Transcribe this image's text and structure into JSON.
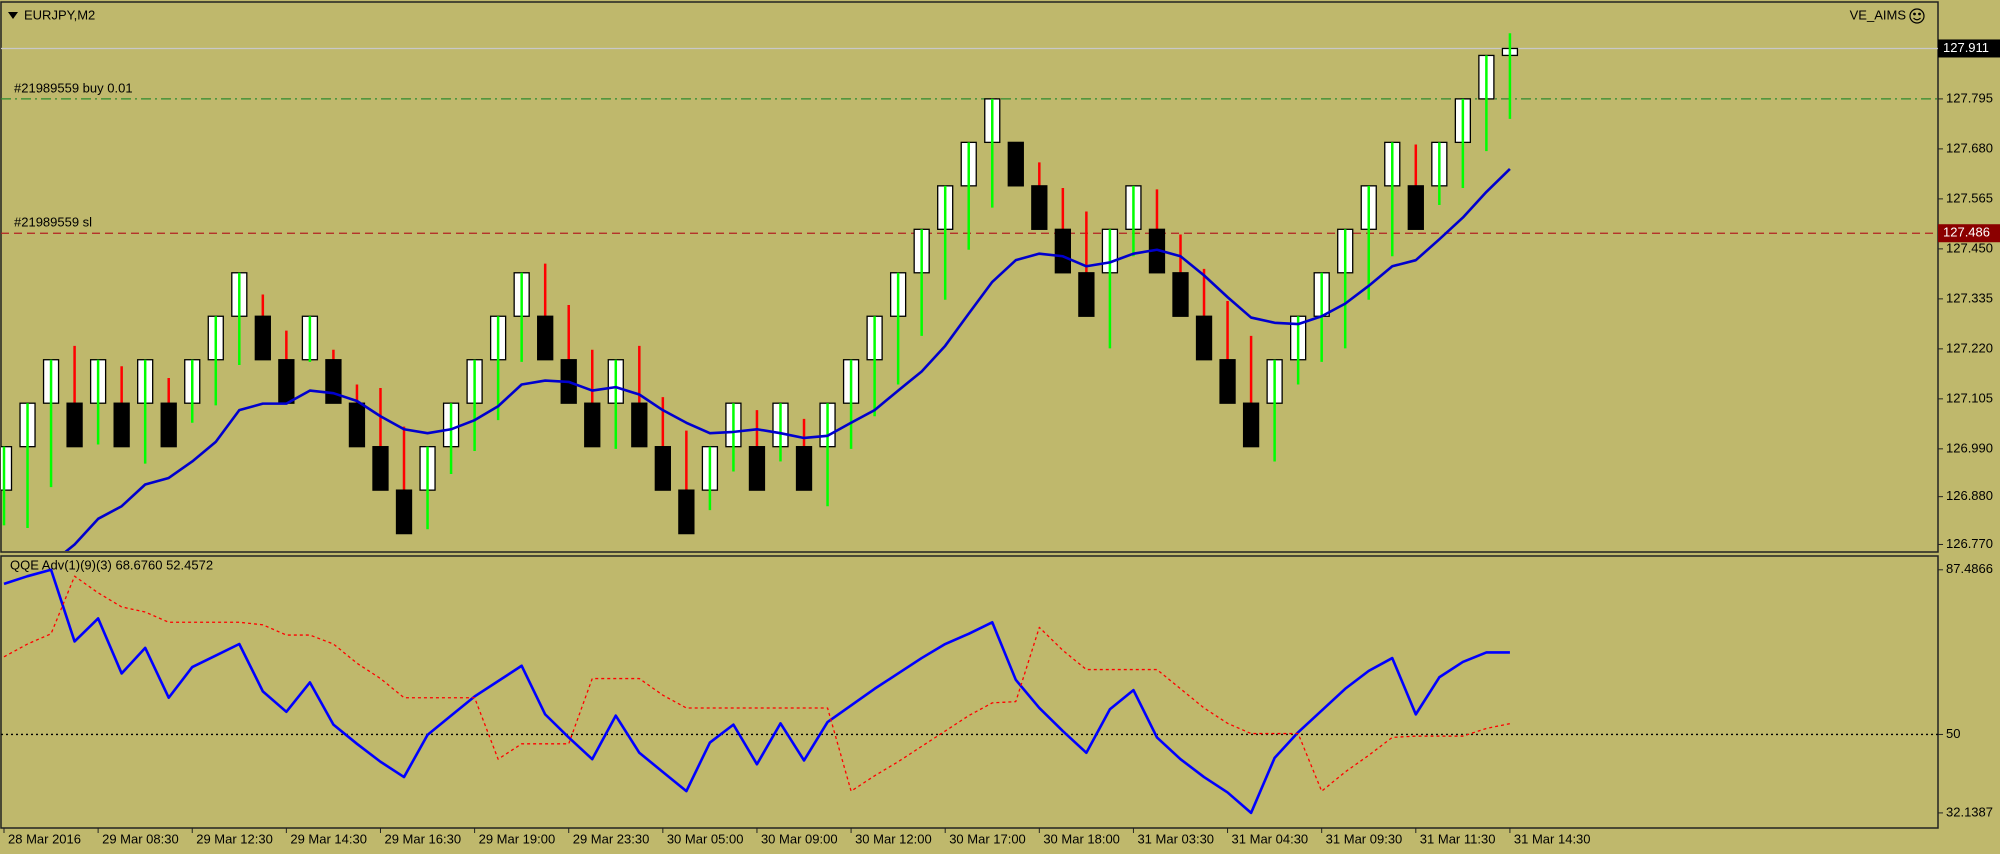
{
  "chart_data": [
    {
      "type": "candlestick",
      "title": "EURJPY,M2",
      "annotations": [
        "VE_AIMS"
      ],
      "open": [
        126.895,
        126.995,
        127.095,
        127.095,
        127.095,
        127.095,
        127.095,
        127.095,
        127.095,
        127.195,
        127.295,
        127.295,
        127.195,
        127.195,
        127.195,
        127.095,
        126.995,
        126.895,
        126.895,
        126.995,
        127.095,
        127.195,
        127.295,
        127.295,
        127.195,
        127.095,
        127.095,
        127.095,
        126.995,
        126.895,
        126.895,
        126.995,
        126.995,
        126.995,
        126.995,
        126.995,
        127.095,
        127.195,
        127.295,
        127.395,
        127.495,
        127.595,
        127.695,
        127.695,
        127.595,
        127.495,
        127.395,
        127.395,
        127.495,
        127.495,
        127.395,
        127.295,
        127.195,
        127.095,
        127.095,
        127.195,
        127.295,
        127.395,
        127.495,
        127.595,
        127.595,
        127.595,
        127.695,
        127.795,
        127.895
      ],
      "high": [
        126.995,
        127.095,
        127.195,
        127.227,
        127.195,
        127.18,
        127.195,
        127.153,
        127.195,
        127.295,
        127.395,
        127.345,
        127.262,
        127.295,
        127.218,
        127.138,
        127.13,
        127.041,
        126.995,
        127.095,
        127.195,
        127.295,
        127.395,
        127.416,
        127.321,
        127.218,
        127.195,
        127.227,
        127.109,
        127.032,
        126.995,
        127.095,
        127.079,
        127.095,
        127.059,
        127.095,
        127.195,
        127.295,
        127.395,
        127.495,
        127.595,
        127.695,
        127.795,
        127.695,
        127.649,
        127.59,
        127.536,
        127.495,
        127.595,
        127.587,
        127.483,
        127.404,
        127.33,
        127.25,
        127.195,
        127.295,
        127.395,
        127.495,
        127.595,
        127.695,
        127.69,
        127.695,
        127.795,
        127.895,
        127.946
      ],
      "low": [
        126.814,
        126.808,
        126.902,
        126.995,
        127.0,
        126.995,
        126.956,
        126.995,
        127.05,
        127.09,
        127.183,
        127.195,
        127.095,
        127.19,
        127.095,
        126.995,
        126.895,
        126.795,
        126.805,
        126.932,
        126.985,
        127.056,
        127.19,
        127.195,
        127.095,
        126.995,
        126.99,
        126.995,
        126.895,
        126.795,
        126.849,
        126.938,
        126.895,
        126.961,
        126.895,
        126.858,
        126.99,
        127.065,
        127.138,
        127.25,
        127.333,
        127.448,
        127.545,
        127.595,
        127.495,
        127.395,
        127.295,
        127.221,
        127.433,
        127.395,
        127.295,
        127.195,
        127.095,
        126.995,
        126.961,
        127.138,
        127.19,
        127.221,
        127.333,
        127.433,
        127.495,
        127.551,
        127.59,
        127.675,
        127.749
      ],
      "close": [
        126.995,
        127.095,
        127.195,
        126.995,
        127.195,
        126.995,
        127.195,
        126.995,
        127.195,
        127.295,
        127.395,
        127.195,
        127.095,
        127.295,
        127.095,
        126.995,
        126.895,
        126.795,
        126.995,
        127.095,
        127.195,
        127.295,
        127.395,
        127.195,
        127.095,
        126.995,
        127.195,
        126.995,
        126.895,
        126.795,
        126.995,
        127.095,
        126.895,
        127.095,
        126.895,
        127.095,
        127.195,
        127.295,
        127.395,
        127.495,
        127.595,
        127.695,
        127.795,
        127.595,
        127.495,
        127.395,
        127.295,
        127.495,
        127.595,
        127.395,
        127.295,
        127.195,
        127.095,
        126.995,
        127.195,
        127.295,
        127.395,
        127.495,
        127.595,
        127.695,
        127.495,
        127.695,
        127.795,
        127.895,
        127.911
      ],
      "up_color": "#ffffff",
      "down_color": "#000000",
      "up_wick_color": "#00ff00",
      "down_wick_color": "#ff0000",
      "series": [
        {
          "color": "#0000cd",
          "values": [
            null,
            null,
            126.726,
            126.77,
            126.829,
            126.858,
            126.908,
            126.923,
            126.961,
            127.006,
            127.079,
            127.094,
            127.094,
            127.124,
            127.118,
            127.1,
            127.065,
            127.035,
            127.026,
            127.035,
            127.056,
            127.088,
            127.138,
            127.147,
            127.144,
            127.124,
            127.132,
            127.115,
            127.079,
            127.05,
            127.026,
            127.029,
            127.035,
            127.026,
            127.015,
            127.02,
            127.05,
            127.079,
            127.124,
            127.168,
            127.227,
            127.301,
            127.374,
            127.424,
            127.439,
            127.433,
            127.41,
            127.419,
            127.439,
            127.448,
            127.433,
            127.389,
            127.339,
            127.292,
            127.28,
            127.277,
            127.295,
            127.324,
            127.365,
            127.41,
            127.424,
            127.472,
            127.522,
            127.581,
            127.634
          ]
        }
      ],
      "hlines": [
        {
          "label": "#21989559 buy 0.01",
          "value": 127.795,
          "color": "#2e8b2e",
          "dash": "dashdot",
          "box": false
        },
        {
          "label": "#21989559 sl",
          "value": 127.486,
          "color": "#b22222",
          "dash": "dashed",
          "box": true,
          "box_color": "#8b0000"
        },
        {
          "value": 127.911,
          "color": "#c8c8c8",
          "dash": "solid",
          "box": true,
          "box_color": "#000000"
        }
      ],
      "ylim": [
        126.755,
        128.011
      ],
      "yticks": [
        127.795,
        {
          "value": 127.68,
          "label": "127.680"
        },
        127.565,
        {
          "value": 127.45,
          "label": "127.450"
        },
        127.335,
        {
          "value": 127.22,
          "label": "127.220"
        },
        127.105,
        {
          "value": 126.99,
          "label": "126.990"
        },
        {
          "value": 126.88,
          "label": "126.880"
        },
        {
          "value": 126.77,
          "label": "126.770"
        }
      ],
      "grid": false
    },
    {
      "type": "line",
      "title": "QQE Adv(1)(9)(3) 68.6760 52.4572",
      "categories": [
        "28 Mar 2016",
        null,
        null,
        null,
        "29 Mar 08:30",
        null,
        null,
        null,
        "29 Mar 12:30",
        null,
        null,
        null,
        "29 Mar 14:30",
        null,
        null,
        null,
        "29 Mar 16:30",
        null,
        null,
        null,
        "29 Mar 19:00",
        null,
        null,
        null,
        "29 Mar 23:30",
        null,
        null,
        null,
        "30 Mar 05:00",
        null,
        null,
        null,
        "30 Mar 09:00",
        null,
        null,
        null,
        "30 Mar 12:00",
        null,
        null,
        null,
        "30 Mar 17:00",
        null,
        null,
        null,
        "30 Mar 18:00",
        null,
        null,
        null,
        "31 Mar 03:30",
        null,
        null,
        null,
        "31 Mar 04:30",
        null,
        null,
        null,
        "31 Mar 09:30",
        null,
        null,
        null,
        "31 Mar 11:30",
        null,
        null,
        null,
        "31 Mar 14:30"
      ],
      "series": [
        {
          "color": "#0000ff",
          "dash": "solid",
          "values": [
            84.28,
            86.03,
            87.49,
            71.17,
            76.42,
            63.89,
            69.72,
            58.36,
            65.35,
            67.97,
            70.59,
            59.81,
            55.15,
            61.85,
            52.24,
            47.87,
            43.79,
            40.3,
            49.91,
            54.28,
            58.65,
            62.14,
            65.64,
            54.57,
            49.33,
            44.37,
            54.28,
            45.83,
            41.46,
            37.09,
            48.16,
            52.24,
            43.21,
            52.53,
            44.08,
            52.82,
            56.61,
            60.4,
            63.89,
            67.39,
            70.59,
            72.92,
            75.54,
            62.44,
            56.03,
            50.78,
            45.83,
            55.74,
            60.1,
            49.33,
            44.37,
            40.3,
            36.8,
            32.14,
            44.67,
            50.49,
            55.44,
            60.4,
            64.47,
            67.39,
            54.57,
            63.02,
            66.51,
            68.676,
            68.676
          ]
        },
        {
          "color": "#ff0000",
          "dash": "dotted",
          "values": [
            67.68,
            70.59,
            72.92,
            86.03,
            82.24,
            79.04,
            77.87,
            75.54,
            75.54,
            75.54,
            75.54,
            74.96,
            72.63,
            72.63,
            70.59,
            66.22,
            62.73,
            58.36,
            58.36,
            58.36,
            58.36,
            44.37,
            47.87,
            47.87,
            47.87,
            62.73,
            62.73,
            62.73,
            58.94,
            56.03,
            56.03,
            56.03,
            56.03,
            56.03,
            56.03,
            56.03,
            37.09,
            40.59,
            43.79,
            47.29,
            50.78,
            54.28,
            57.19,
            57.48,
            74.38,
            69.14,
            64.77,
            64.77,
            64.77,
            64.77,
            60.4,
            56.03,
            52.53,
            50.2,
            50.2,
            50.2,
            37.09,
            41.46,
            45.25,
            49.33,
            49.62,
            49.62,
            49.62,
            51.37,
            52.4572
          ]
        }
      ],
      "levels": [
        50
      ],
      "ylim": [
        28.93,
        90.4
      ],
      "yticks": [
        87.4866,
        50,
        32.1387
      ],
      "grid": false
    }
  ]
}
